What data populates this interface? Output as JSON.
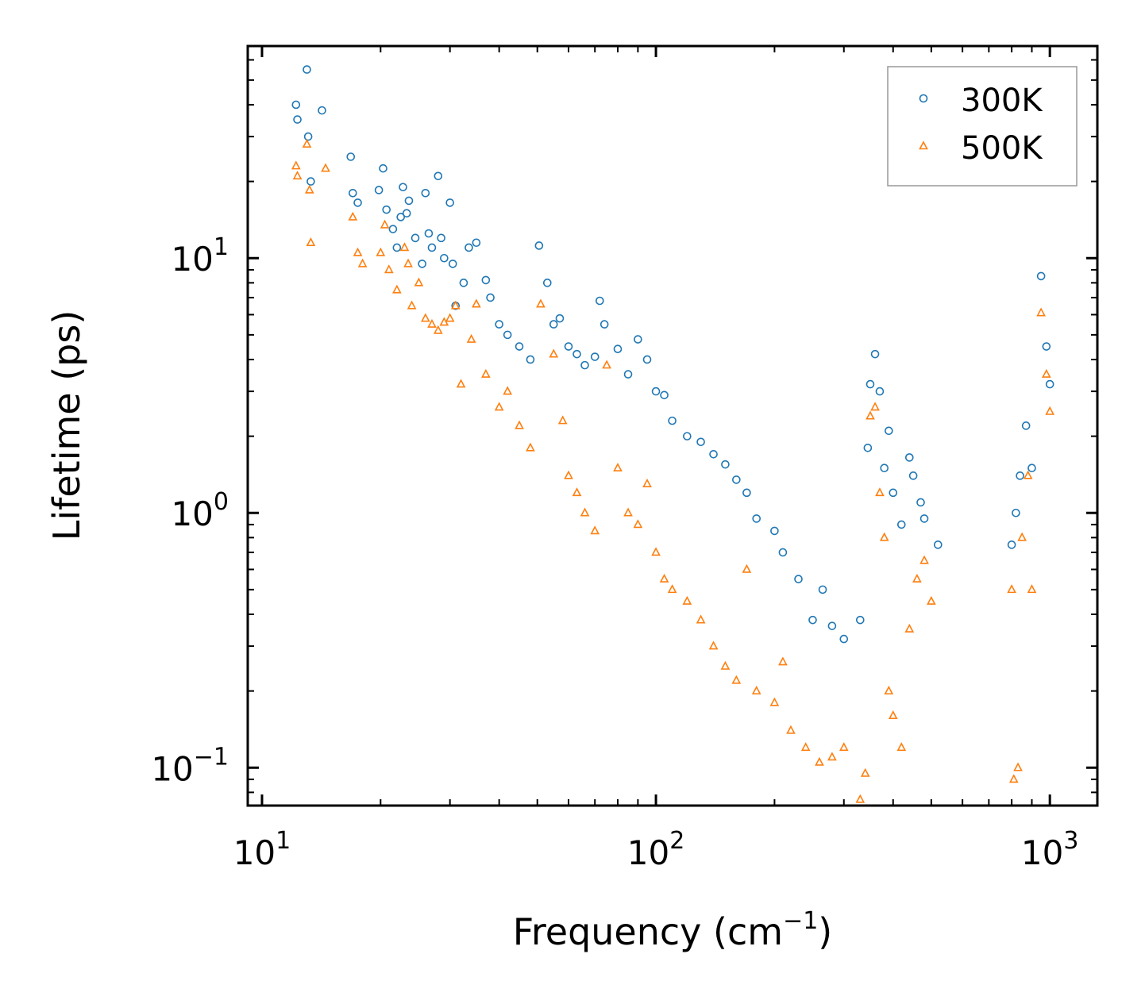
{
  "chart_data": {
    "type": "scatter",
    "title": "",
    "xlabel_main": "Frequency (cm",
    "xlabel_sup": "−1",
    "xlabel_close": ")",
    "ylabel": "Lifetime (ps)",
    "xscale": "log",
    "yscale": "log",
    "xlim": [
      9.2,
      1320
    ],
    "ylim": [
      0.071,
      68
    ],
    "x_ticks": [
      {
        "value": 10,
        "base": "10",
        "exp": "1"
      },
      {
        "value": 100,
        "base": "10",
        "exp": "2"
      },
      {
        "value": 1000,
        "base": "10",
        "exp": "3"
      }
    ],
    "y_ticks": [
      {
        "value": 0.1,
        "base": "10",
        "exp": "−1"
      },
      {
        "value": 1,
        "base": "10",
        "exp": "0"
      },
      {
        "value": 10,
        "base": "10",
        "exp": "1"
      }
    ],
    "legend_position": "top-right",
    "series": [
      {
        "name": "300K",
        "color": "#1f77b4",
        "marker": "circle",
        "points": [
          [
            12.2,
            40
          ],
          [
            12.3,
            35
          ],
          [
            13.0,
            55
          ],
          [
            13.1,
            30
          ],
          [
            13.3,
            20
          ],
          [
            14.2,
            38
          ],
          [
            16.8,
            25
          ],
          [
            17.0,
            18
          ],
          [
            17.5,
            16.5
          ],
          [
            19.8,
            18.5
          ],
          [
            20.3,
            22.5
          ],
          [
            20.7,
            15.5
          ],
          [
            21.5,
            13
          ],
          [
            22.0,
            11
          ],
          [
            22.5,
            14.5
          ],
          [
            22.8,
            19
          ],
          [
            23.3,
            15
          ],
          [
            23.6,
            16.8
          ],
          [
            24.5,
            12
          ],
          [
            25.5,
            9.5
          ],
          [
            26.0,
            18
          ],
          [
            26.5,
            12.5
          ],
          [
            27.0,
            11
          ],
          [
            28.0,
            21
          ],
          [
            28.5,
            12
          ],
          [
            29.0,
            10
          ],
          [
            30.0,
            16.5
          ],
          [
            30.5,
            9.5
          ],
          [
            31.0,
            6.5
          ],
          [
            32.5,
            8
          ],
          [
            33.5,
            11
          ],
          [
            35.0,
            11.5
          ],
          [
            37.0,
            8.2
          ],
          [
            38.0,
            7
          ],
          [
            40.0,
            5.5
          ],
          [
            42.0,
            5
          ],
          [
            45.0,
            4.5
          ],
          [
            48.0,
            4
          ],
          [
            50.5,
            11.2
          ],
          [
            53.0,
            8
          ],
          [
            55.0,
            5.5
          ],
          [
            57.0,
            5.8
          ],
          [
            60.0,
            4.5
          ],
          [
            63.0,
            4.2
          ],
          [
            66.0,
            3.8
          ],
          [
            70.0,
            4.1
          ],
          [
            72.0,
            6.8
          ],
          [
            74.0,
            5.5
          ],
          [
            80.0,
            4.4
          ],
          [
            85.0,
            3.5
          ],
          [
            90.0,
            4.8
          ],
          [
            95.0,
            4.0
          ],
          [
            100.0,
            3.0
          ],
          [
            105.0,
            2.9
          ],
          [
            110.0,
            2.3
          ],
          [
            120.0,
            2.0
          ],
          [
            130.0,
            1.9
          ],
          [
            140.0,
            1.7
          ],
          [
            150.0,
            1.55
          ],
          [
            160.0,
            1.35
          ],
          [
            170.0,
            1.2
          ],
          [
            180.0,
            0.95
          ],
          [
            200.0,
            0.85
          ],
          [
            210.0,
            0.7
          ],
          [
            230.0,
            0.55
          ],
          [
            250.0,
            0.38
          ],
          [
            265.0,
            0.5
          ],
          [
            280.0,
            0.36
          ],
          [
            300.0,
            0.32
          ],
          [
            330.0,
            0.38
          ],
          [
            345.0,
            1.8
          ],
          [
            350.0,
            3.2
          ],
          [
            360.0,
            4.2
          ],
          [
            370.0,
            3.0
          ],
          [
            380.0,
            1.5
          ],
          [
            390.0,
            2.1
          ],
          [
            400.0,
            1.2
          ],
          [
            420.0,
            0.9
          ],
          [
            440.0,
            1.65
          ],
          [
            450.0,
            1.4
          ],
          [
            470.0,
            1.1
          ],
          [
            480.0,
            0.95
          ],
          [
            520.0,
            0.75
          ],
          [
            800.0,
            0.75
          ],
          [
            820.0,
            1.0
          ],
          [
            840.0,
            1.4
          ],
          [
            870.0,
            2.2
          ],
          [
            900.0,
            1.5
          ],
          [
            950.0,
            8.5
          ],
          [
            980.0,
            4.5
          ],
          [
            1000.0,
            3.2
          ]
        ]
      },
      {
        "name": "500K",
        "color": "#ff7f0e",
        "marker": "triangle",
        "points": [
          [
            12.2,
            23
          ],
          [
            12.3,
            21
          ],
          [
            13.0,
            28
          ],
          [
            13.2,
            18.5
          ],
          [
            13.3,
            11.5
          ],
          [
            14.5,
            22.5
          ],
          [
            17.0,
            14.5
          ],
          [
            17.5,
            10.5
          ],
          [
            18.0,
            9.5
          ],
          [
            20.0,
            10.5
          ],
          [
            20.5,
            13.5
          ],
          [
            21.0,
            9
          ],
          [
            22.0,
            7.5
          ],
          [
            23.0,
            11
          ],
          [
            23.5,
            9.5
          ],
          [
            24.0,
            6.5
          ],
          [
            25.0,
            8.0
          ],
          [
            26.0,
            5.8
          ],
          [
            27.0,
            5.5
          ],
          [
            28.0,
            5.2
          ],
          [
            29.0,
            5.6
          ],
          [
            30.0,
            5.8
          ],
          [
            31.0,
            6.5
          ],
          [
            32.0,
            3.2
          ],
          [
            34.0,
            4.8
          ],
          [
            35.0,
            6.6
          ],
          [
            37.0,
            3.5
          ],
          [
            40.0,
            2.6
          ],
          [
            42.0,
            3.0
          ],
          [
            45.0,
            2.2
          ],
          [
            48.0,
            1.8
          ],
          [
            51.0,
            6.6
          ],
          [
            55.0,
            4.2
          ],
          [
            58.0,
            2.3
          ],
          [
            60.0,
            1.4
          ],
          [
            63.0,
            1.2
          ],
          [
            66.0,
            1.0
          ],
          [
            70.0,
            0.85
          ],
          [
            75.0,
            3.8
          ],
          [
            80.0,
            1.5
          ],
          [
            85.0,
            1.0
          ],
          [
            90.0,
            0.9
          ],
          [
            95.0,
            1.3
          ],
          [
            100.0,
            0.7
          ],
          [
            105.0,
            0.55
          ],
          [
            110.0,
            0.5
          ],
          [
            120.0,
            0.45
          ],
          [
            130.0,
            0.38
          ],
          [
            140.0,
            0.3
          ],
          [
            150.0,
            0.25
          ],
          [
            160.0,
            0.22
          ],
          [
            170.0,
            0.6
          ],
          [
            180.0,
            0.2
          ],
          [
            200.0,
            0.18
          ],
          [
            210.0,
            0.26
          ],
          [
            220.0,
            0.14
          ],
          [
            240.0,
            0.12
          ],
          [
            260.0,
            0.105
          ],
          [
            280.0,
            0.11
          ],
          [
            300.0,
            0.12
          ],
          [
            330.0,
            0.075
          ],
          [
            340.0,
            0.095
          ],
          [
            350.0,
            2.4
          ],
          [
            360.0,
            2.6
          ],
          [
            370.0,
            1.2
          ],
          [
            380.0,
            0.8
          ],
          [
            390.0,
            0.2
          ],
          [
            400.0,
            0.16
          ],
          [
            420.0,
            0.12
          ],
          [
            440.0,
            0.35
          ],
          [
            460.0,
            0.55
          ],
          [
            480.0,
            0.65
          ],
          [
            500.0,
            0.45
          ],
          [
            800.0,
            0.5
          ],
          [
            810.0,
            0.09
          ],
          [
            830.0,
            0.1
          ],
          [
            850.0,
            0.8
          ],
          [
            880.0,
            1.4
          ],
          [
            900.0,
            0.5
          ],
          [
            950.0,
            6.1
          ],
          [
            980.0,
            3.5
          ],
          [
            1000.0,
            2.5
          ]
        ]
      }
    ]
  }
}
